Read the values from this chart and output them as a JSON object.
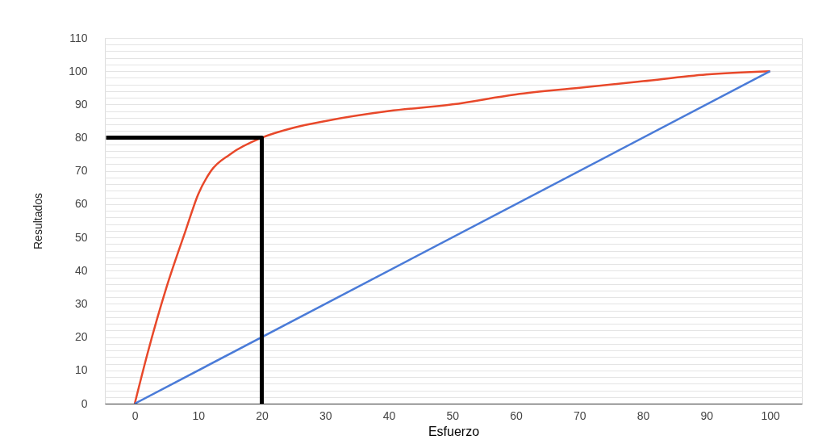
{
  "chart_data": {
    "type": "line",
    "xlabel": "Esfuerzo",
    "ylabel": "Resultados",
    "xlim": [
      -4.7,
      105
    ],
    "ylim": [
      0,
      110
    ],
    "xticks": [
      0,
      10,
      20,
      30,
      40,
      50,
      60,
      70,
      80,
      90,
      100
    ],
    "yticks": [
      0,
      {
        "value": 2,
        "label": null
      },
      {
        "value": 4,
        "label": null
      },
      {
        "value": 6,
        "label": null
      },
      {
        "value": 8,
        "label": null
      },
      10,
      {
        "value": 12,
        "label": null
      },
      {
        "value": 14,
        "label": null
      },
      {
        "value": 16,
        "label": null
      },
      {
        "value": 18,
        "label": null
      },
      20,
      {
        "value": 22,
        "label": null
      },
      {
        "value": 24,
        "label": null
      },
      {
        "value": 26,
        "label": null
      },
      {
        "value": 28,
        "label": null
      },
      30,
      {
        "value": 32,
        "label": null
      },
      {
        "value": 34,
        "label": null
      },
      {
        "value": 36,
        "label": null
      },
      {
        "value": 38,
        "label": null
      },
      40,
      {
        "value": 42,
        "label": null
      },
      {
        "value": 44,
        "label": null
      },
      {
        "value": 46,
        "label": null
      },
      {
        "value": 48,
        "label": null
      },
      50,
      {
        "value": 52,
        "label": null
      },
      {
        "value": 54,
        "label": null
      },
      {
        "value": 56,
        "label": null
      },
      {
        "value": 58,
        "label": null
      },
      60,
      {
        "value": 62,
        "label": null
      },
      {
        "value": 64,
        "label": null
      },
      {
        "value": 66,
        "label": null
      },
      {
        "value": 68,
        "label": null
      },
      70,
      {
        "value": 72,
        "label": null
      },
      {
        "value": 74,
        "label": null
      },
      {
        "value": 76,
        "label": null
      },
      {
        "value": 78,
        "label": null
      },
      80,
      {
        "value": 82,
        "label": null
      },
      {
        "value": 84,
        "label": null
      },
      {
        "value": 86,
        "label": null
      },
      {
        "value": 88,
        "label": null
      },
      90,
      {
        "value": 92,
        "label": null
      },
      {
        "value": 94,
        "label": null
      },
      {
        "value": 96,
        "label": null
      },
      {
        "value": 98,
        "label": null
      },
      100,
      {
        "value": 102,
        "label": null
      },
      {
        "value": 104,
        "label": null
      },
      {
        "value": 106,
        "label": null
      },
      {
        "value": 108,
        "label": null
      },
      110
    ],
    "grid": "y",
    "marker": "none",
    "line_style": "solid",
    "series": [
      {
        "color": "#e8482a",
        "x": [
          0,
          2,
          5,
          8,
          10,
          12,
          15,
          20,
          25,
          30,
          40,
          50,
          60,
          70,
          80,
          90,
          100
        ],
        "values": [
          0,
          15,
          35,
          52,
          63,
          70,
          75,
          80,
          83,
          85,
          88,
          90,
          93,
          95,
          97,
          99,
          100
        ]
      },
      {
        "color": "#4a7bd8",
        "x": [
          0,
          100
        ],
        "values": [
          0,
          100
        ]
      },
      {
        "color": "#000000",
        "x": [
          -4.5,
          20,
          20
        ],
        "values": [
          80,
          80,
          0
        ]
      }
    ]
  }
}
